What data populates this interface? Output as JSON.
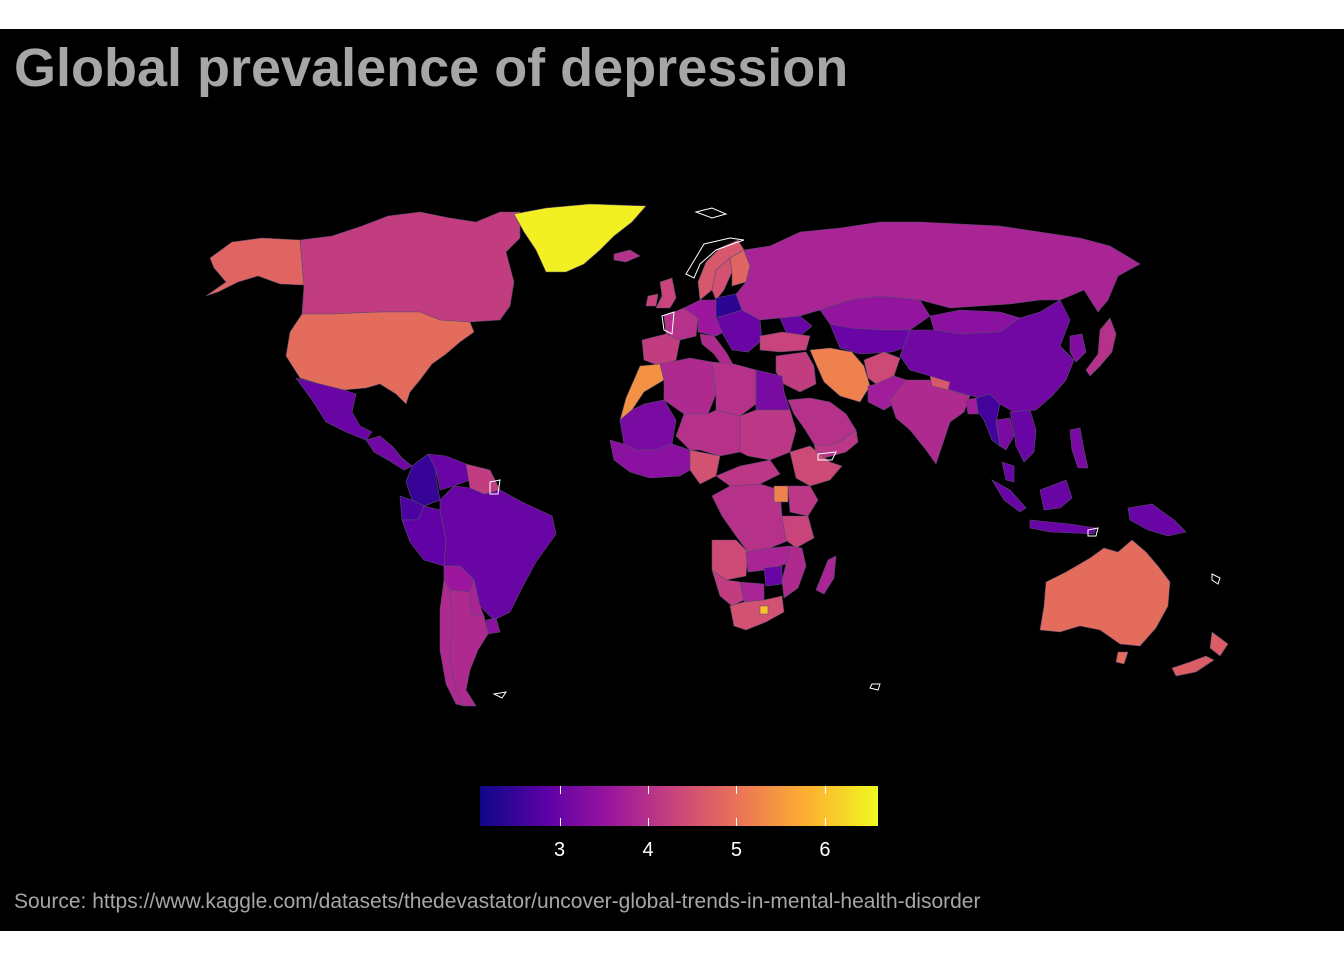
{
  "title": "Global prevalence of depression",
  "caption": "Source: https://www.kaggle.com/datasets/thedevastator/uncover-global-trends-in-mental-health-disorder",
  "legend": {
    "colors": [
      "#0d0887",
      "#5c01a6",
      "#9c179e",
      "#cc4778",
      "#ed7953",
      "#fdb42f",
      "#f0f921"
    ],
    "range": [
      2.1,
      6.6
    ],
    "ticks": [
      {
        "value": 3,
        "label": "3"
      },
      {
        "value": 4,
        "label": "4"
      },
      {
        "value": 5,
        "label": "5"
      },
      {
        "value": 6,
        "label": "6"
      }
    ]
  },
  "map": {
    "background": "#000000",
    "border_color": "#5a4b6e",
    "regions": [
      {
        "name": "Alaska",
        "value": 4.8
      },
      {
        "name": "Canada",
        "value": 4.2
      },
      {
        "name": "Greenland",
        "value": 6.5
      },
      {
        "name": "United States",
        "value": 4.9
      },
      {
        "name": "Mexico",
        "value": 3.0
      },
      {
        "name": "Central America",
        "value": 3.1
      },
      {
        "name": "Colombia",
        "value": 2.5
      },
      {
        "name": "Venezuela",
        "value": 3.0
      },
      {
        "name": "Guianas",
        "value": 4.2
      },
      {
        "name": "Ecuador",
        "value": 2.7
      },
      {
        "name": "Peru",
        "value": 2.9
      },
      {
        "name": "Bolivia",
        "value": 3.0
      },
      {
        "name": "Brazil",
        "value": 3.6
      },
      {
        "name": "Paraguay",
        "value": 3.8
      },
      {
        "name": "Uruguay",
        "value": 3.4
      },
      {
        "name": "Chile",
        "value": 3.9
      },
      {
        "name": "Argentina",
        "value": 3.9
      },
      {
        "name": "Iceland",
        "value": 4.0
      },
      {
        "name": "Norway",
        "value": 4.6
      },
      {
        "name": "Sweden",
        "value": 4.5
      },
      {
        "name": "Finland",
        "value": 4.8
      },
      {
        "name": "United Kingdom",
        "value": 4.3
      },
      {
        "name": "Ireland",
        "value": 4.3
      },
      {
        "name": "France",
        "value": 4.0
      },
      {
        "name": "Iberia",
        "value": 4.2
      },
      {
        "name": "Central Europe",
        "value": 3.6
      },
      {
        "name": "Poland",
        "value": 2.4
      },
      {
        "name": "Balkans",
        "value": 3.0
      },
      {
        "name": "Italy",
        "value": 3.9
      },
      {
        "name": "Russia",
        "value": 3.8
      },
      {
        "name": "Kazakhstan",
        "value": 3.5
      },
      {
        "name": "Caucasus",
        "value": 3.0
      },
      {
        "name": "Turkey",
        "value": 4.3
      },
      {
        "name": "Central Asia",
        "value": 3.0
      },
      {
        "name": "Mongolia",
        "value": 3.4
      },
      {
        "name": "China",
        "value": 3.1
      },
      {
        "name": "Korea",
        "value": 3.3
      },
      {
        "name": "Japan",
        "value": 4.0
      },
      {
        "name": "Iran",
        "value": 5.2
      },
      {
        "name": "Afghanistan",
        "value": 4.4
      },
      {
        "name": "Pakistan",
        "value": 3.7
      },
      {
        "name": "India",
        "value": 3.9
      },
      {
        "name": "Bangladesh",
        "value": 4.6
      },
      {
        "name": "Nepal",
        "value": 3.7
      },
      {
        "name": "Myanmar",
        "value": 2.6
      },
      {
        "name": "Thailand",
        "value": 3.2
      },
      {
        "name": "Indochina",
        "value": 3.0
      },
      {
        "name": "Malaysia",
        "value": 3.0
      },
      {
        "name": "Philippines",
        "value": 3.2
      },
      {
        "name": "Indonesia",
        "value": 3.0
      },
      {
        "name": "New Guinea",
        "value": 3.0
      },
      {
        "name": "Arabian Peninsula",
        "value": 4.0
      },
      {
        "name": "Iraq & Syria",
        "value": 4.2
      },
      {
        "name": "Yemen & Oman",
        "value": 4.1
      },
      {
        "name": "Morocco",
        "value": 5.4
      },
      {
        "name": "Algeria",
        "value": 3.9
      },
      {
        "name": "Libya",
        "value": 4.0
      },
      {
        "name": "Egypt",
        "value": 3.2
      },
      {
        "name": "Mali",
        "value": 3.2
      },
      {
        "name": "West Africa",
        "value": 3.4
      },
      {
        "name": "Niger & Chad",
        "value": 4.0
      },
      {
        "name": "Sudan",
        "value": 4.1
      },
      {
        "name": "Ethiopia",
        "value": 4.4
      },
      {
        "name": "Nigeria",
        "value": 4.5
      },
      {
        "name": "Central Africa",
        "value": 4.1
      },
      {
        "name": "DR Congo",
        "value": 4.0
      },
      {
        "name": "Uganda",
        "value": 5.2
      },
      {
        "name": "Kenya",
        "value": 4.1
      },
      {
        "name": "Tanzania",
        "value": 4.3
      },
      {
        "name": "Angola",
        "value": 4.4
      },
      {
        "name": "Zambia",
        "value": 3.8
      },
      {
        "name": "Mozambique",
        "value": 3.9
      },
      {
        "name": "Zimbabwe",
        "value": 3.0
      },
      {
        "name": "Namibia",
        "value": 4.2
      },
      {
        "name": "Botswana",
        "value": 3.8
      },
      {
        "name": "South Africa",
        "value": 4.5
      },
      {
        "name": "Lesotho",
        "value": 6.0
      },
      {
        "name": "Madagascar",
        "value": 3.8
      },
      {
        "name": "Australia",
        "value": 4.9
      },
      {
        "name": "Tasmania",
        "value": 4.9
      },
      {
        "name": "New Zealand",
        "value": 4.7
      }
    ]
  }
}
